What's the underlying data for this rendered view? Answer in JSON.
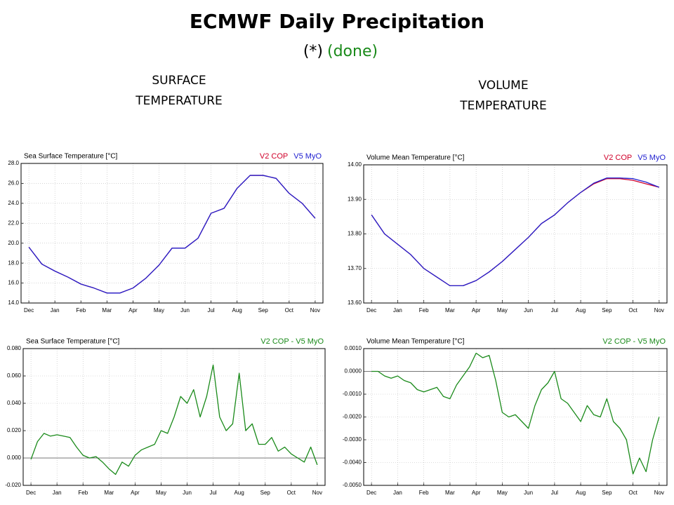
{
  "slide": {
    "title": "ECMWF Daily Precipitation",
    "subtitle_mark": "(*)",
    "subtitle_status": "(done)",
    "left_heading": "SURFACE TEMPERATURE",
    "right_heading": "VOLUME TEMPERATURE"
  },
  "chart_data": [
    {
      "type": "line",
      "title": "Sea Surface Temperature [°C]",
      "xlim": [
        -0.3,
        11.3
      ],
      "xticks": [
        {
          "value": 0,
          "label": "Dec"
        },
        {
          "value": 1,
          "label": "Jan"
        },
        {
          "value": 2,
          "label": "Feb"
        },
        {
          "value": 3,
          "label": "Mar"
        },
        {
          "value": 4,
          "label": "Apr"
        },
        {
          "value": 5,
          "label": "May"
        },
        {
          "value": 6,
          "label": "Jun"
        },
        {
          "value": 7,
          "label": "Jul"
        },
        {
          "value": 8,
          "label": "Aug"
        },
        {
          "value": 9,
          "label": "Sep"
        },
        {
          "value": 10,
          "label": "Oct"
        },
        {
          "value": 11,
          "label": "Nov"
        }
      ],
      "x": [
        0,
        0.5,
        1,
        1.5,
        2,
        2.5,
        3,
        3.5,
        4,
        4.5,
        5,
        5.5,
        6,
        6.5,
        7,
        7.5,
        8,
        8.5,
        9,
        9.5,
        10,
        10.5,
        11
      ],
      "ylim": [
        14,
        28
      ],
      "yticks": [
        {
          "value": 14,
          "label": "14.0"
        },
        {
          "value": 16,
          "label": "16.0"
        },
        {
          "value": 18,
          "label": "18.0"
        },
        {
          "value": 20,
          "label": "20.0"
        },
        {
          "value": 22,
          "label": "22.0"
        },
        {
          "value": 24,
          "label": "24.0"
        },
        {
          "value": 26,
          "label": "26.0"
        },
        {
          "value": 28,
          "label": "28.0"
        }
      ],
      "grid": true,
      "series": [
        {
          "name": "V2 COP",
          "color": "#d0002a",
          "values": [
            19.6,
            17.9,
            17.2,
            16.6,
            15.9,
            15.5,
            15.0,
            15.0,
            15.5,
            16.5,
            17.8,
            19.5,
            19.5,
            20.5,
            23.0,
            23.5,
            25.5,
            26.8,
            26.8,
            26.5,
            25.0,
            24.0,
            22.5
          ]
        },
        {
          "name": "V5 MyO",
          "color": "#2020d0",
          "values": [
            19.6,
            17.9,
            17.2,
            16.6,
            15.9,
            15.5,
            15.0,
            15.0,
            15.5,
            16.5,
            17.8,
            19.5,
            19.5,
            20.5,
            23.0,
            23.5,
            25.5,
            26.8,
            26.8,
            26.5,
            25.0,
            24.0,
            22.5
          ]
        }
      ]
    },
    {
      "type": "line",
      "title": "Volume Mean Temperature [°C]",
      "xlim": [
        -0.3,
        11.3
      ],
      "xticks": [
        {
          "value": 0,
          "label": "Dec"
        },
        {
          "value": 1,
          "label": "Jan"
        },
        {
          "value": 2,
          "label": "Feb"
        },
        {
          "value": 3,
          "label": "Mar"
        },
        {
          "value": 4,
          "label": "Apr"
        },
        {
          "value": 5,
          "label": "May"
        },
        {
          "value": 6,
          "label": "Jun"
        },
        {
          "value": 7,
          "label": "Jul"
        },
        {
          "value": 8,
          "label": "Aug"
        },
        {
          "value": 9,
          "label": "Sep"
        },
        {
          "value": 10,
          "label": "Oct"
        },
        {
          "value": 11,
          "label": "Nov"
        }
      ],
      "x": [
        0,
        0.5,
        1,
        1.5,
        2,
        2.5,
        3,
        3.5,
        4,
        4.5,
        5,
        5.5,
        6,
        6.5,
        7,
        7.5,
        8,
        8.5,
        9,
        9.5,
        10,
        10.5,
        11
      ],
      "ylim": [
        13.6,
        14.0
      ],
      "yticks": [
        {
          "value": 13.6,
          "label": "13.60"
        },
        {
          "value": 13.7,
          "label": "13.70"
        },
        {
          "value": 13.8,
          "label": "13.80"
        },
        {
          "value": 13.9,
          "label": "13.90"
        },
        {
          "value": 14.0,
          "label": "14.00"
        }
      ],
      "grid": true,
      "series": [
        {
          "name": "V2 COP",
          "color": "#d0002a",
          "values": [
            13.855,
            13.8,
            13.77,
            13.74,
            13.7,
            13.675,
            13.65,
            13.65,
            13.665,
            13.69,
            13.72,
            13.755,
            13.79,
            13.83,
            13.855,
            13.89,
            13.92,
            13.945,
            13.96,
            13.96,
            13.955,
            13.945,
            13.935
          ]
        },
        {
          "name": "V5 MyO",
          "color": "#2020d0",
          "values": [
            13.855,
            13.8,
            13.77,
            13.74,
            13.7,
            13.675,
            13.65,
            13.65,
            13.665,
            13.69,
            13.72,
            13.755,
            13.79,
            13.83,
            13.855,
            13.89,
            13.92,
            13.947,
            13.962,
            13.962,
            13.96,
            13.95,
            13.935
          ]
        }
      ]
    },
    {
      "type": "line",
      "title": "Sea Surface Temperature [°C]",
      "xlim": [
        -0.3,
        11.3
      ],
      "xticks": [
        {
          "value": 0,
          "label": "Dec"
        },
        {
          "value": 1,
          "label": "Jan"
        },
        {
          "value": 2,
          "label": "Feb"
        },
        {
          "value": 3,
          "label": "Mar"
        },
        {
          "value": 4,
          "label": "Apr"
        },
        {
          "value": 5,
          "label": "May"
        },
        {
          "value": 6,
          "label": "Jun"
        },
        {
          "value": 7,
          "label": "Jul"
        },
        {
          "value": 8,
          "label": "Aug"
        },
        {
          "value": 9,
          "label": "Sep"
        },
        {
          "value": 10,
          "label": "Oct"
        },
        {
          "value": 11,
          "label": "Nov"
        }
      ],
      "x": [
        0,
        0.25,
        0.5,
        0.75,
        1,
        1.25,
        1.5,
        1.75,
        2,
        2.25,
        2.5,
        2.75,
        3,
        3.25,
        3.5,
        3.75,
        4,
        4.25,
        4.5,
        4.75,
        5,
        5.25,
        5.5,
        5.75,
        6,
        6.25,
        6.5,
        6.75,
        7,
        7.25,
        7.5,
        7.75,
        8,
        8.25,
        8.5,
        8.75,
        9,
        9.25,
        9.5,
        9.75,
        10,
        10.25,
        10.5,
        10.75,
        11
      ],
      "ylim": [
        -0.02,
        0.08
      ],
      "yticks": [
        {
          "value": -0.02,
          "label": "-0.020"
        },
        {
          "value": 0,
          "label": "0.000"
        },
        {
          "value": 0.02,
          "label": "0.020"
        },
        {
          "value": 0.04,
          "label": "0.040"
        },
        {
          "value": 0.06,
          "label": "0.060"
        },
        {
          "value": 0.08,
          "label": "0.080"
        }
      ],
      "grid": true,
      "series": [
        {
          "name": "V2 COP - V5 MyO",
          "color": "#1a8a1a",
          "values": [
            -0.001,
            0.012,
            0.018,
            0.016,
            0.017,
            0.016,
            0.015,
            0.008,
            0.002,
            0.0,
            0.001,
            -0.003,
            -0.008,
            -0.012,
            -0.003,
            -0.006,
            0.002,
            0.006,
            0.008,
            0.01,
            0.02,
            0.018,
            0.03,
            0.045,
            0.04,
            0.05,
            0.03,
            0.045,
            0.068,
            0.03,
            0.02,
            0.025,
            0.062,
            0.02,
            0.025,
            0.01,
            0.01,
            0.015,
            0.005,
            0.008,
            0.003,
            0.0,
            -0.003,
            0.008,
            -0.005
          ]
        }
      ]
    },
    {
      "type": "line",
      "title": "Volume Mean Temperature [°C]",
      "xlim": [
        -0.3,
        11.3
      ],
      "xticks": [
        {
          "value": 0,
          "label": "Dec"
        },
        {
          "value": 1,
          "label": "Jan"
        },
        {
          "value": 2,
          "label": "Feb"
        },
        {
          "value": 3,
          "label": "Mar"
        },
        {
          "value": 4,
          "label": "Apr"
        },
        {
          "value": 5,
          "label": "May"
        },
        {
          "value": 6,
          "label": "Jun"
        },
        {
          "value": 7,
          "label": "Jul"
        },
        {
          "value": 8,
          "label": "Aug"
        },
        {
          "value": 9,
          "label": "Sep"
        },
        {
          "value": 10,
          "label": "Oct"
        },
        {
          "value": 11,
          "label": "Nov"
        }
      ],
      "x": [
        0,
        0.25,
        0.5,
        0.75,
        1,
        1.25,
        1.5,
        1.75,
        2,
        2.25,
        2.5,
        2.75,
        3,
        3.25,
        3.5,
        3.75,
        4,
        4.25,
        4.5,
        4.75,
        5,
        5.25,
        5.5,
        5.75,
        6,
        6.25,
        6.5,
        6.75,
        7,
        7.25,
        7.5,
        7.75,
        8,
        8.25,
        8.5,
        8.75,
        9,
        9.25,
        9.5,
        9.75,
        10,
        10.25,
        10.5,
        10.75,
        11
      ],
      "ylim": [
        -0.005,
        0.001
      ],
      "yticks": [
        {
          "value": -0.005,
          "label": "-0.0050"
        },
        {
          "value": -0.004,
          "label": "-0.0040"
        },
        {
          "value": -0.003,
          "label": "-0.0030"
        },
        {
          "value": -0.002,
          "label": "-0.0020"
        },
        {
          "value": -0.001,
          "label": "-0.0010"
        },
        {
          "value": 0,
          "label": "0.0000"
        },
        {
          "value": 0.001,
          "label": "0.0010"
        }
      ],
      "grid": true,
      "series": [
        {
          "name": "V2 COP - V5 MyO",
          "color": "#1a8a1a",
          "values": [
            0.0,
            0.0,
            -0.0002,
            -0.0003,
            -0.0002,
            -0.0004,
            -0.0005,
            -0.0008,
            -0.0009,
            -0.0008,
            -0.0007,
            -0.0011,
            -0.0012,
            -0.0006,
            -0.0002,
            0.0002,
            0.0008,
            0.0006,
            0.0007,
            -0.0004,
            -0.0018,
            -0.002,
            -0.0019,
            -0.0022,
            -0.0025,
            -0.0015,
            -0.0008,
            -0.0005,
            0.0,
            -0.0012,
            -0.0014,
            -0.0018,
            -0.0022,
            -0.0015,
            -0.0019,
            -0.002,
            -0.0012,
            -0.0022,
            -0.0025,
            -0.003,
            -0.0045,
            -0.0038,
            -0.0044,
            -0.003,
            -0.002
          ]
        }
      ]
    }
  ]
}
